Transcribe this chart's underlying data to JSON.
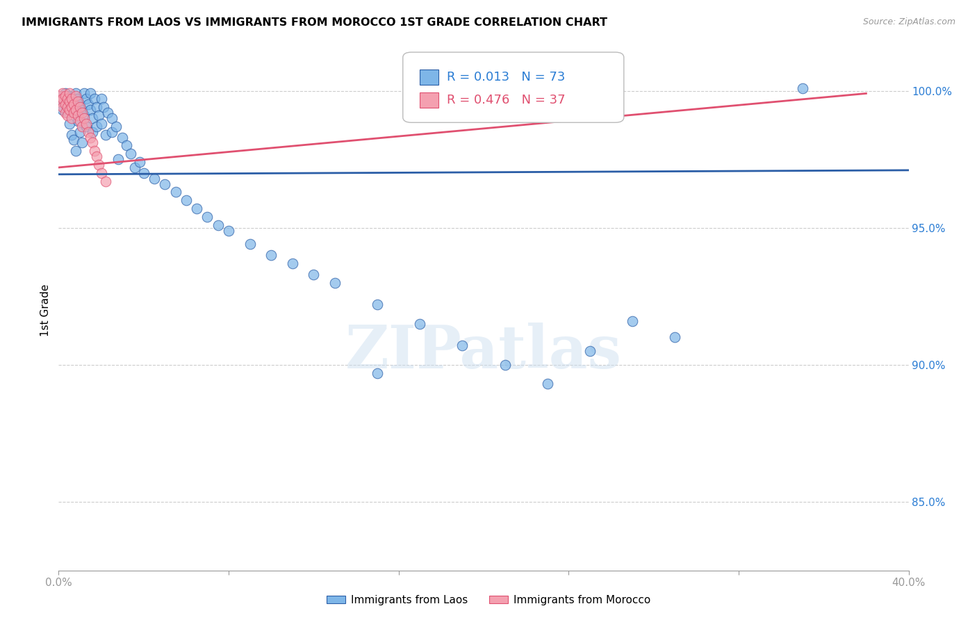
{
  "title": "IMMIGRANTS FROM LAOS VS IMMIGRANTS FROM MOROCCO 1ST GRADE CORRELATION CHART",
  "source": "Source: ZipAtlas.com",
  "ylabel": "1st Grade",
  "ylabel_ticks": [
    "85.0%",
    "90.0%",
    "95.0%",
    "100.0%"
  ],
  "ylabel_values": [
    0.85,
    0.9,
    0.95,
    1.0
  ],
  "xlim": [
    0.0,
    0.4
  ],
  "ylim": [
    0.825,
    1.015
  ],
  "legend_blue_label": "Immigrants from Laos",
  "legend_pink_label": "Immigrants from Morocco",
  "legend_r_blue": "R = 0.013",
  "legend_n_blue": "N = 73",
  "legend_r_pink": "R = 0.476",
  "legend_n_pink": "N = 37",
  "blue_color": "#7EB6E8",
  "pink_color": "#F4A0B0",
  "blue_line_color": "#2B5EA7",
  "pink_line_color": "#E05070",
  "r_n_blue_color": "#2B7DD4",
  "r_n_pink_color": "#E05070",
  "blue_points": [
    [
      0.001,
      0.998
    ],
    [
      0.002,
      0.996
    ],
    [
      0.002,
      0.993
    ],
    [
      0.003,
      0.999
    ],
    [
      0.003,
      0.995
    ],
    [
      0.004,
      0.997
    ],
    [
      0.004,
      0.992
    ],
    [
      0.005,
      0.998
    ],
    [
      0.005,
      0.988
    ],
    [
      0.006,
      0.996
    ],
    [
      0.006,
      0.984
    ],
    [
      0.007,
      0.994
    ],
    [
      0.007,
      0.982
    ],
    [
      0.008,
      0.999
    ],
    [
      0.008,
      0.992
    ],
    [
      0.008,
      0.978
    ],
    [
      0.009,
      0.997
    ],
    [
      0.009,
      0.989
    ],
    [
      0.01,
      0.995
    ],
    [
      0.01,
      0.985
    ],
    [
      0.011,
      0.993
    ],
    [
      0.011,
      0.981
    ],
    [
      0.012,
      0.999
    ],
    [
      0.012,
      0.991
    ],
    [
      0.013,
      0.997
    ],
    [
      0.013,
      0.987
    ],
    [
      0.014,
      0.995
    ],
    [
      0.015,
      0.999
    ],
    [
      0.015,
      0.993
    ],
    [
      0.016,
      0.99
    ],
    [
      0.016,
      0.985
    ],
    [
      0.017,
      0.997
    ],
    [
      0.018,
      0.994
    ],
    [
      0.018,
      0.987
    ],
    [
      0.019,
      0.991
    ],
    [
      0.02,
      0.997
    ],
    [
      0.02,
      0.988
    ],
    [
      0.021,
      0.994
    ],
    [
      0.022,
      0.984
    ],
    [
      0.023,
      0.992
    ],
    [
      0.025,
      0.99
    ],
    [
      0.025,
      0.985
    ],
    [
      0.027,
      0.987
    ],
    [
      0.028,
      0.975
    ],
    [
      0.03,
      0.983
    ],
    [
      0.032,
      0.98
    ],
    [
      0.034,
      0.977
    ],
    [
      0.036,
      0.972
    ],
    [
      0.038,
      0.974
    ],
    [
      0.04,
      0.97
    ],
    [
      0.045,
      0.968
    ],
    [
      0.05,
      0.966
    ],
    [
      0.055,
      0.963
    ],
    [
      0.06,
      0.96
    ],
    [
      0.065,
      0.957
    ],
    [
      0.07,
      0.954
    ],
    [
      0.075,
      0.951
    ],
    [
      0.08,
      0.949
    ],
    [
      0.09,
      0.944
    ],
    [
      0.1,
      0.94
    ],
    [
      0.11,
      0.937
    ],
    [
      0.12,
      0.933
    ],
    [
      0.13,
      0.93
    ],
    [
      0.15,
      0.922
    ],
    [
      0.17,
      0.915
    ],
    [
      0.19,
      0.907
    ],
    [
      0.21,
      0.9
    ],
    [
      0.23,
      0.893
    ],
    [
      0.25,
      0.905
    ],
    [
      0.27,
      0.916
    ],
    [
      0.29,
      0.91
    ],
    [
      0.35,
      1.001
    ],
    [
      0.15,
      0.897
    ]
  ],
  "pink_points": [
    [
      0.001,
      0.998
    ],
    [
      0.001,
      0.996
    ],
    [
      0.002,
      0.999
    ],
    [
      0.002,
      0.997
    ],
    [
      0.002,
      0.994
    ],
    [
      0.003,
      0.998
    ],
    [
      0.003,
      0.995
    ],
    [
      0.003,
      0.992
    ],
    [
      0.004,
      0.997
    ],
    [
      0.004,
      0.994
    ],
    [
      0.004,
      0.991
    ],
    [
      0.005,
      0.999
    ],
    [
      0.005,
      0.996
    ],
    [
      0.005,
      0.993
    ],
    [
      0.006,
      0.997
    ],
    [
      0.006,
      0.994
    ],
    [
      0.006,
      0.99
    ],
    [
      0.007,
      0.995
    ],
    [
      0.007,
      0.992
    ],
    [
      0.008,
      0.998
    ],
    [
      0.008,
      0.993
    ],
    [
      0.009,
      0.996
    ],
    [
      0.009,
      0.991
    ],
    [
      0.01,
      0.994
    ],
    [
      0.01,
      0.989
    ],
    [
      0.011,
      0.992
    ],
    [
      0.011,
      0.987
    ],
    [
      0.012,
      0.99
    ],
    [
      0.013,
      0.988
    ],
    [
      0.014,
      0.985
    ],
    [
      0.015,
      0.983
    ],
    [
      0.016,
      0.981
    ],
    [
      0.017,
      0.978
    ],
    [
      0.018,
      0.976
    ],
    [
      0.019,
      0.973
    ],
    [
      0.02,
      0.97
    ],
    [
      0.022,
      0.967
    ]
  ],
  "blue_trend_x": [
    0.0,
    0.4
  ],
  "blue_trend_y": [
    0.9695,
    0.971
  ],
  "pink_trend_x": [
    0.0,
    0.38
  ],
  "pink_trend_y": [
    0.972,
    0.999
  ],
  "watermark": "ZIPatlas",
  "grid_color": "#cccccc",
  "bg_color": "#ffffff"
}
